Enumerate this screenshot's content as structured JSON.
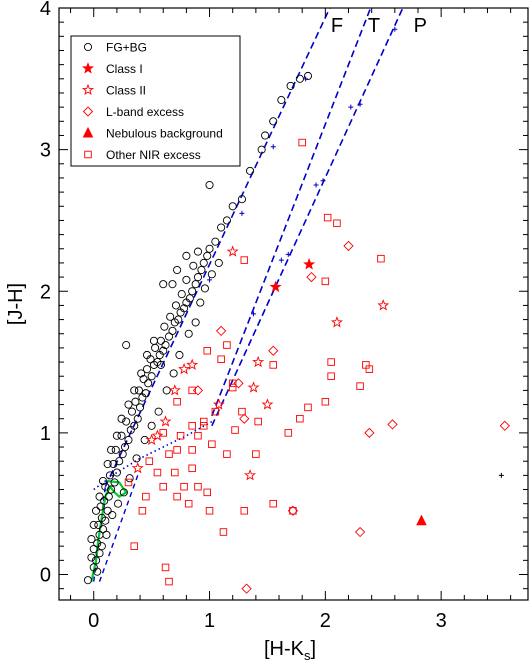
{
  "chart_data": {
    "type": "scatter",
    "title": "",
    "xlabel": "[H-K",
    "xlabel_sub": "s",
    "xlabel_close": "]",
    "ylabel": "[J-H]",
    "xlim": [
      -0.3,
      3.75
    ],
    "ylim": [
      -0.18,
      4.0
    ],
    "xticks": [
      0,
      1,
      2,
      3
    ],
    "xtick_labels": [
      "0",
      "1",
      "2",
      "3"
    ],
    "yticks": [
      0,
      1,
      2,
      3,
      4
    ],
    "ytick_labels": [
      "0",
      "1",
      "2",
      "3",
      "4"
    ],
    "legend_position": "top-left",
    "legend": [
      {
        "label": "FG+BG",
        "marker": "circle-open",
        "color": "#000000"
      },
      {
        "label": "Class I",
        "marker": "star-filled",
        "color": "#ff0000"
      },
      {
        "label": "Class II",
        "marker": "star-open",
        "color": "#ff0000"
      },
      {
        "label": "L-band excess",
        "marker": "diamond-open",
        "color": "#ff0000"
      },
      {
        "label": "Nebulous background",
        "marker": "triangle-filled",
        "color": "#ff0000"
      },
      {
        "label": "Other NIR excess",
        "marker": "square-open",
        "color": "#ff0000"
      }
    ],
    "reddening_labels": [
      "F",
      "T",
      "P"
    ],
    "series": [
      {
        "name": "FG+BG",
        "marker": "circle-open",
        "color": "#000000",
        "points": [
          [
            -0.05,
            -0.04
          ],
          [
            0.0,
            0.05
          ],
          [
            0.02,
            0.1
          ],
          [
            0.05,
            0.15
          ],
          [
            0.0,
            0.18
          ],
          [
            -0.02,
            0.25
          ],
          [
            0.03,
            0.22
          ],
          [
            0.05,
            0.28
          ],
          [
            0.08,
            0.32
          ],
          [
            0.04,
            0.35
          ],
          [
            0.07,
            0.4
          ],
          [
            0.1,
            0.38
          ],
          [
            0.12,
            0.45
          ],
          [
            0.06,
            0.48
          ],
          [
            0.09,
            0.52
          ],
          [
            0.13,
            0.55
          ],
          [
            0.15,
            0.6
          ],
          [
            0.1,
            0.62
          ],
          [
            0.18,
            0.65
          ],
          [
            0.14,
            0.7
          ],
          [
            0.2,
            0.72
          ],
          [
            0.17,
            0.78
          ],
          [
            0.22,
            0.8
          ],
          [
            0.25,
            0.85
          ],
          [
            0.19,
            0.88
          ],
          [
            0.27,
            0.9
          ],
          [
            0.3,
            0.95
          ],
          [
            0.24,
            0.98
          ],
          [
            0.32,
            1.02
          ],
          [
            0.35,
            1.05
          ],
          [
            0.28,
            1.08
          ],
          [
            0.38,
            1.1
          ],
          [
            0.33,
            1.15
          ],
          [
            0.4,
            1.18
          ],
          [
            0.36,
            1.22
          ],
          [
            0.42,
            1.25
          ],
          [
            0.45,
            1.28
          ],
          [
            0.39,
            1.3
          ],
          [
            0.47,
            1.35
          ],
          [
            0.43,
            1.38
          ],
          [
            0.5,
            1.4
          ],
          [
            0.46,
            1.45
          ],
          [
            0.52,
            1.48
          ],
          [
            0.55,
            1.5
          ],
          [
            0.49,
            1.52
          ],
          [
            0.57,
            1.55
          ],
          [
            0.6,
            1.58
          ],
          [
            0.53,
            1.6
          ],
          [
            0.62,
            1.62
          ],
          [
            0.58,
            1.65
          ],
          [
            0.65,
            1.68
          ],
          [
            0.68,
            1.72
          ],
          [
            0.61,
            1.75
          ],
          [
            0.7,
            1.78
          ],
          [
            0.73,
            1.8
          ],
          [
            0.66,
            1.82
          ],
          [
            0.75,
            1.85
          ],
          [
            0.78,
            1.88
          ],
          [
            0.71,
            1.9
          ],
          [
            0.8,
            1.92
          ],
          [
            0.83,
            1.95
          ],
          [
            0.76,
            1.98
          ],
          [
            0.85,
            2.0
          ],
          [
            0.88,
            2.05
          ],
          [
            0.8,
            2.08
          ],
          [
            0.9,
            2.1
          ],
          [
            0.93,
            2.15
          ],
          [
            0.86,
            2.18
          ],
          [
            0.95,
            2.2
          ],
          [
            0.98,
            2.25
          ],
          [
            0.9,
            2.28
          ],
          [
            1.0,
            2.3
          ],
          [
            1.05,
            2.35
          ],
          [
            1.1,
            2.45
          ],
          [
            1.15,
            2.5
          ],
          [
            1.2,
            2.6
          ],
          [
            1.28,
            2.65
          ],
          [
            1.0,
            2.75
          ],
          [
            1.35,
            2.85
          ],
          [
            1.45,
            3.0
          ],
          [
            1.48,
            3.1
          ],
          [
            1.55,
            3.2
          ],
          [
            1.62,
            3.35
          ],
          [
            1.7,
            3.45
          ],
          [
            1.78,
            3.5
          ],
          [
            1.85,
            3.52
          ],
          [
            0.28,
            1.62
          ],
          [
            0.6,
            2.05
          ],
          [
            0.72,
            2.15
          ],
          [
            0.8,
            2.25
          ],
          [
            0.68,
            2.05
          ],
          [
            0.52,
            1.65
          ],
          [
            0.46,
            1.55
          ],
          [
            0.41,
            1.42
          ],
          [
            0.58,
            1.48
          ],
          [
            0.35,
            1.3
          ],
          [
            0.3,
            1.2
          ],
          [
            0.24,
            1.1
          ],
          [
            0.2,
            0.98
          ],
          [
            0.15,
            0.88
          ],
          [
            0.12,
            0.78
          ],
          [
            0.08,
            0.66
          ],
          [
            0.05,
            0.55
          ],
          [
            0.02,
            0.45
          ],
          [
            0.0,
            0.35
          ],
          [
            -0.02,
            0.12
          ],
          [
            0.03,
            0.02
          ],
          [
            0.07,
            0.2
          ],
          [
            0.11,
            0.28
          ],
          [
            0.16,
            0.42
          ],
          [
            0.21,
            0.5
          ],
          [
            0.26,
            0.58
          ],
          [
            0.31,
            0.68
          ],
          [
            0.37,
            0.82
          ],
          [
            0.44,
            0.95
          ],
          [
            0.5,
            1.05
          ],
          [
            0.56,
            1.15
          ],
          [
            0.63,
            1.3
          ],
          [
            0.69,
            1.42
          ],
          [
            0.74,
            1.55
          ],
          [
            0.82,
            1.7
          ],
          [
            0.88,
            1.78
          ],
          [
            0.92,
            1.92
          ],
          [
            0.96,
            2.02
          ],
          [
            1.02,
            2.12
          ],
          [
            1.08,
            2.2
          ]
        ]
      },
      {
        "name": "Class I",
        "marker": "star-filled",
        "color": "#ff0000",
        "points": [
          [
            1.57,
            2.03
          ],
          [
            1.86,
            2.19
          ]
        ]
      },
      {
        "name": "Class II",
        "marker": "star-open",
        "color": "#ff0000",
        "points": [
          [
            1.2,
            2.28
          ],
          [
            1.42,
            1.5
          ],
          [
            2.1,
            1.78
          ],
          [
            2.5,
            1.9
          ],
          [
            0.62,
            1.08
          ],
          [
            1.5,
            1.2
          ],
          [
            0.5,
            0.95
          ],
          [
            1.38,
            1.32
          ],
          [
            1.35,
            0.7
          ],
          [
            0.7,
            1.3
          ],
          [
            0.78,
            1.45
          ],
          [
            0.55,
            0.98
          ],
          [
            0.38,
            0.75
          ],
          [
            1.08,
            1.2
          ],
          [
            0.85,
            1.48
          ]
        ]
      },
      {
        "name": "L-band excess",
        "marker": "diamond-open",
        "color": "#ff0000",
        "points": [
          [
            1.72,
            0.45
          ],
          [
            2.3,
            0.3
          ],
          [
            1.32,
            -0.1
          ],
          [
            2.58,
            1.06
          ],
          [
            3.55,
            1.05
          ],
          [
            1.55,
            1.58
          ],
          [
            2.38,
            1.0
          ],
          [
            2.2,
            2.32
          ],
          [
            1.88,
            2.1
          ],
          [
            1.25,
            1.35
          ],
          [
            0.9,
            1.3
          ],
          [
            1.3,
            1.1
          ],
          [
            1.1,
            1.72
          ]
        ]
      },
      {
        "name": "Nebulous background",
        "marker": "triangle-filled",
        "color": "#ff0000",
        "points": [
          [
            2.83,
            0.38
          ]
        ]
      },
      {
        "name": "Other NIR excess",
        "marker": "square-open",
        "color": "#ff0000",
        "points": [
          [
            2.1,
            2.48
          ],
          [
            2.02,
            2.52
          ],
          [
            2.48,
            2.23
          ],
          [
            2.0,
            2.07
          ],
          [
            1.3,
            2.22
          ],
          [
            1.8,
            3.05
          ],
          [
            1.55,
            1.48
          ],
          [
            2.35,
            1.48
          ],
          [
            2.05,
            1.5
          ],
          [
            2.38,
            1.45
          ],
          [
            2.0,
            1.22
          ],
          [
            2.3,
            1.33
          ],
          [
            1.68,
            1.0
          ],
          [
            1.78,
            1.1
          ],
          [
            2.05,
            1.4
          ],
          [
            1.85,
            1.18
          ],
          [
            1.28,
            1.15
          ],
          [
            1.42,
            1.08
          ],
          [
            1.2,
            1.32
          ],
          [
            1.1,
            1.52
          ],
          [
            1.15,
            1.62
          ],
          [
            1.2,
            1.35
          ],
          [
            1.05,
            1.15
          ],
          [
            0.98,
            1.58
          ],
          [
            0.95,
            1.08
          ],
          [
            0.85,
            1.05
          ],
          [
            0.75,
            0.98
          ],
          [
            0.9,
            0.98
          ],
          [
            0.65,
            0.85
          ],
          [
            0.7,
            0.72
          ],
          [
            0.72,
            0.55
          ],
          [
            0.85,
            0.75
          ],
          [
            0.9,
            0.62
          ],
          [
            0.98,
            0.58
          ],
          [
            1.0,
            0.45
          ],
          [
            0.82,
            0.5
          ],
          [
            0.78,
            0.62
          ],
          [
            0.6,
            0.62
          ],
          [
            0.72,
            0.88
          ],
          [
            0.55,
            0.72
          ],
          [
            0.45,
            0.55
          ],
          [
            0.42,
            0.45
          ],
          [
            0.35,
            0.2
          ],
          [
            0.3,
            0.65
          ],
          [
            0.62,
            0.05
          ],
          [
            0.65,
            -0.05
          ],
          [
            1.15,
            0.85
          ],
          [
            1.4,
            0.85
          ],
          [
            1.55,
            0.5
          ],
          [
            1.72,
            0.45
          ],
          [
            1.3,
            0.45
          ],
          [
            1.12,
            0.3
          ],
          [
            0.48,
            0.8
          ],
          [
            0.85,
            0.88
          ],
          [
            1.22,
            1.02
          ],
          [
            0.6,
            1.0
          ],
          [
            0.72,
            1.22
          ],
          [
            0.85,
            1.3
          ],
          [
            0.95,
            1.05
          ],
          [
            1.02,
            0.92
          ]
        ]
      },
      {
        "name": "",
        "marker": "plus",
        "color": "#000000",
        "points": [
          [
            3.52,
            0.7
          ]
        ]
      }
    ],
    "reddening_vectors": [
      {
        "label": "F",
        "color": "#0000cc",
        "from": [
          0.1,
          0.62
        ],
        "to": [
          2.05,
          4.02
        ],
        "ticks": [
          [
            1.0,
            2.08
          ],
          [
            1.28,
            2.55
          ],
          [
            1.55,
            3.02
          ],
          [
            1.83,
            3.5
          ]
        ]
      },
      {
        "label": "T",
        "color": "#0000cc",
        "from": [
          1.02,
          1.12
        ],
        "to": [
          2.4,
          4.02
        ],
        "ticks": [
          [
            1.38,
            1.84
          ],
          [
            1.68,
            2.26
          ],
          [
            1.98,
            2.78
          ],
          [
            2.22,
            3.3
          ]
        ]
      },
      {
        "label": "P",
        "color": "#0000cc",
        "from": [
          1.02,
          1.05
        ],
        "to": [
          2.68,
          4.02
        ],
        "ticks": [
          [
            1.62,
            2.22
          ],
          [
            1.92,
            2.75
          ],
          [
            2.3,
            3.32
          ],
          [
            2.6,
            3.85
          ]
        ]
      }
    ],
    "ttauri_locus": {
      "color": "#0000cc",
      "points": [
        [
          0.0,
          0.6
        ],
        [
          0.2,
          0.72
        ],
        [
          0.4,
          0.82
        ],
        [
          0.6,
          0.9
        ],
        [
          0.8,
          0.98
        ],
        [
          1.02,
          1.08
        ]
      ]
    },
    "dwarf_giant_locus": {
      "color": "#00cc33",
      "points": [
        [
          -0.02,
          -0.05
        ],
        [
          0.02,
          0.1
        ],
        [
          0.04,
          0.25
        ],
        [
          0.07,
          0.4
        ],
        [
          0.1,
          0.55
        ],
        [
          0.14,
          0.62
        ],
        [
          0.18,
          0.58
        ],
        [
          0.22,
          0.55
        ],
        [
          0.28,
          0.58
        ],
        [
          0.22,
          0.65
        ],
        [
          0.12,
          0.66
        ]
      ]
    }
  }
}
